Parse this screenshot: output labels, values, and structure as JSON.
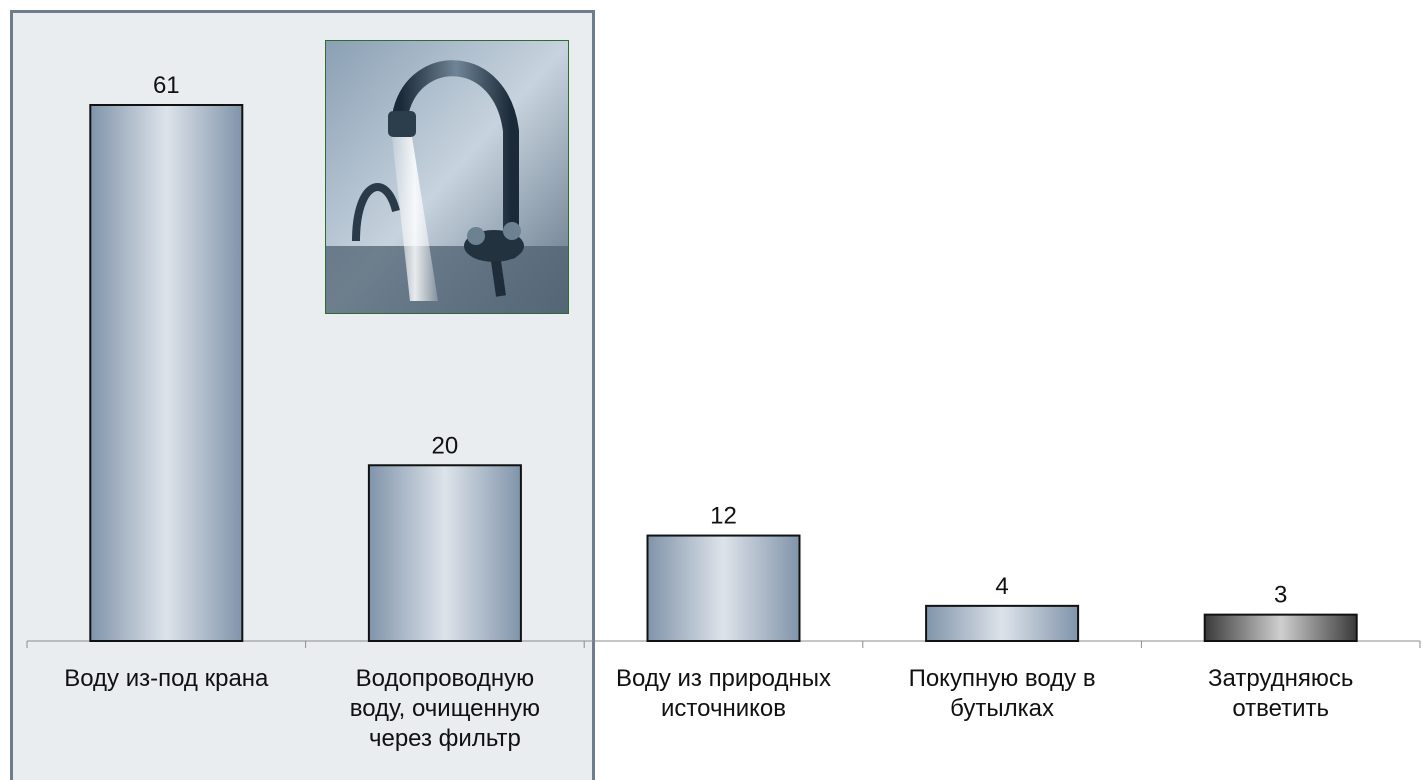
{
  "chart_data": {
    "type": "bar",
    "categories": [
      [
        "Воду из-под крана"
      ],
      [
        "Водопроводную",
        "воду, очищенную",
        "через фильтр"
      ],
      [
        "Воду из природных",
        "источников"
      ],
      [
        "Покупную воду в",
        "бутылках"
      ],
      [
        "Затрудняюсь",
        "ответить"
      ]
    ],
    "values": [
      61,
      20,
      12,
      4,
      3
    ],
    "title": "",
    "xlabel": "",
    "ylabel": "",
    "ylim": [
      0,
      61
    ],
    "grid": false,
    "legend": "none",
    "highlighted_categories": [
      0,
      1
    ],
    "colors": {
      "bar_edge": "#8094aa",
      "bar_center": "#dde3ea",
      "bar_dark_edge": "#3a3a3a",
      "bar_dark_center": "#cfcfcf",
      "highlight_panel": "#e9edf0",
      "highlight_border": "#6e7d8c"
    }
  },
  "photo": {
    "icon": "water-faucet-photo"
  }
}
